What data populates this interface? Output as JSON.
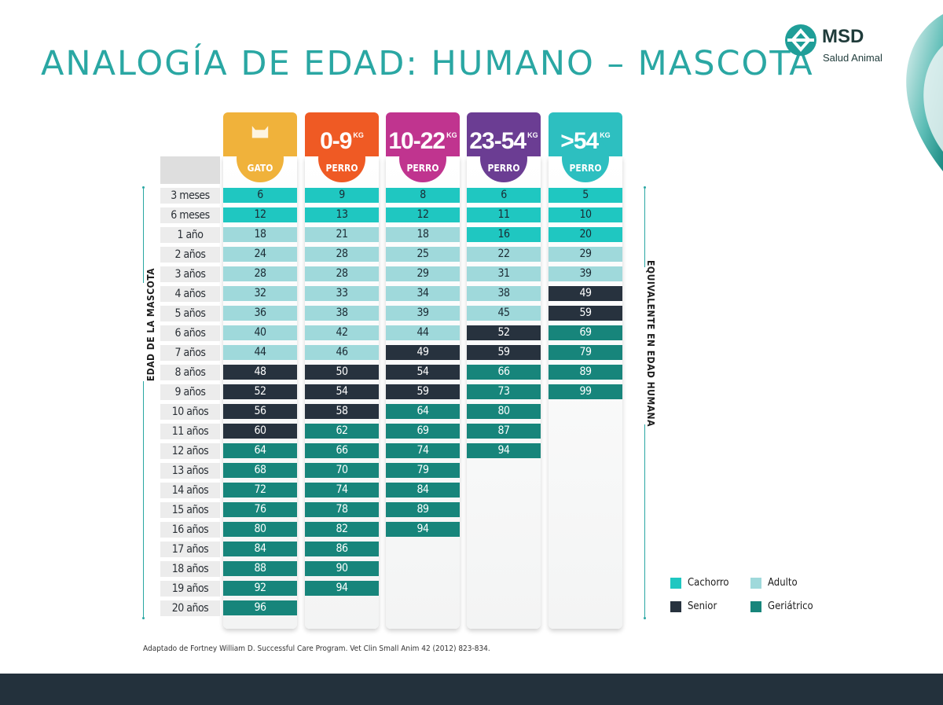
{
  "title": "ANALOGÍA DE EDAD: HUMANO – MASCOTA",
  "brand": {
    "name": "MSD",
    "subtitle": "Salud Animal",
    "color": "#1f3b3a",
    "accent": "#2aa7a3"
  },
  "columns": [
    {
      "label": "",
      "kg": "",
      "badge": "GATO",
      "color": "#f0b23b",
      "icon": "cat-icon"
    },
    {
      "label": "0-9",
      "kg": "KG",
      "badge": "PERRO",
      "color": "#ef5a24"
    },
    {
      "label": "10-22",
      "kg": "KG",
      "badge": "PERRO",
      "color": "#c0348f"
    },
    {
      "label": "23-54",
      "kg": "KG",
      "badge": "PERRO",
      "color": "#6b3d93"
    },
    {
      "label": ">54",
      "kg": "KG",
      "badge": "PERRO",
      "color": "#2dbfc0"
    }
  ],
  "ages": [
    "3 meses",
    "6 meses",
    "1 año",
    "2 años",
    "3 años",
    "4 años",
    "5 años",
    "6 años",
    "7 años",
    "8 años",
    "9 años",
    "10 años",
    "11 años",
    "12 años",
    "13 años",
    "14 años",
    "15 años",
    "16 años",
    "17 años",
    "18 años",
    "19 años",
    "20 años"
  ],
  "table": [
    {
      "values": [
        6,
        12,
        18,
        24,
        28,
        32,
        36,
        40,
        44,
        48,
        52,
        56,
        60,
        64,
        68,
        72,
        76,
        80,
        84,
        88,
        92,
        96
      ],
      "stages": [
        "c",
        "c",
        "a",
        "a",
        "a",
        "a",
        "a",
        "a",
        "a",
        "s",
        "s",
        "s",
        "s",
        "g",
        "g",
        "g",
        "g",
        "g",
        "g",
        "g",
        "g",
        "g"
      ]
    },
    {
      "values": [
        9,
        13,
        21,
        28,
        28,
        33,
        38,
        42,
        46,
        50,
        54,
        58,
        62,
        66,
        70,
        74,
        78,
        82,
        86,
        90,
        94
      ],
      "stages": [
        "c",
        "c",
        "a",
        "a",
        "a",
        "a",
        "a",
        "a",
        "a",
        "s",
        "s",
        "s",
        "g",
        "g",
        "g",
        "g",
        "g",
        "g",
        "g",
        "g",
        "g"
      ]
    },
    {
      "values": [
        8,
        12,
        18,
        25,
        29,
        34,
        39,
        44,
        49,
        54,
        59,
        64,
        69,
        74,
        79,
        84,
        89,
        94
      ],
      "stages": [
        "c",
        "c",
        "a",
        "a",
        "a",
        "a",
        "a",
        "a",
        "s",
        "s",
        "s",
        "g",
        "g",
        "g",
        "g",
        "g",
        "g",
        "g"
      ]
    },
    {
      "values": [
        6,
        11,
        16,
        22,
        31,
        38,
        45,
        52,
        59,
        66,
        73,
        80,
        87,
        94
      ],
      "stages": [
        "c",
        "c",
        "c",
        "a",
        "a",
        "a",
        "a",
        "s",
        "s",
        "g",
        "g",
        "g",
        "g",
        "g"
      ]
    },
    {
      "values": [
        5,
        10,
        20,
        29,
        39,
        49,
        59,
        69,
        79,
        89,
        99
      ],
      "stages": [
        "c",
        "c",
        "c",
        "a",
        "a",
        "s",
        "s",
        "g",
        "g",
        "g",
        "g"
      ]
    }
  ],
  "left_axis_label": "EDAD DE LA MASCOTA",
  "right_axis_label": "EQUIVALENTE EN EDAD HUMANA",
  "legend": [
    {
      "label": "Cachorro",
      "color": "#1fc7c1"
    },
    {
      "label": "Adulto",
      "color": "#9fd9db"
    },
    {
      "label": "Senior",
      "color": "#27323e"
    },
    {
      "label": "Geriátrico",
      "color": "#17857b"
    }
  ],
  "source": "Adaptado de Fortney William D. Successful Care Program. Vet Clin Small Anim 42 (2012) 823-834."
}
